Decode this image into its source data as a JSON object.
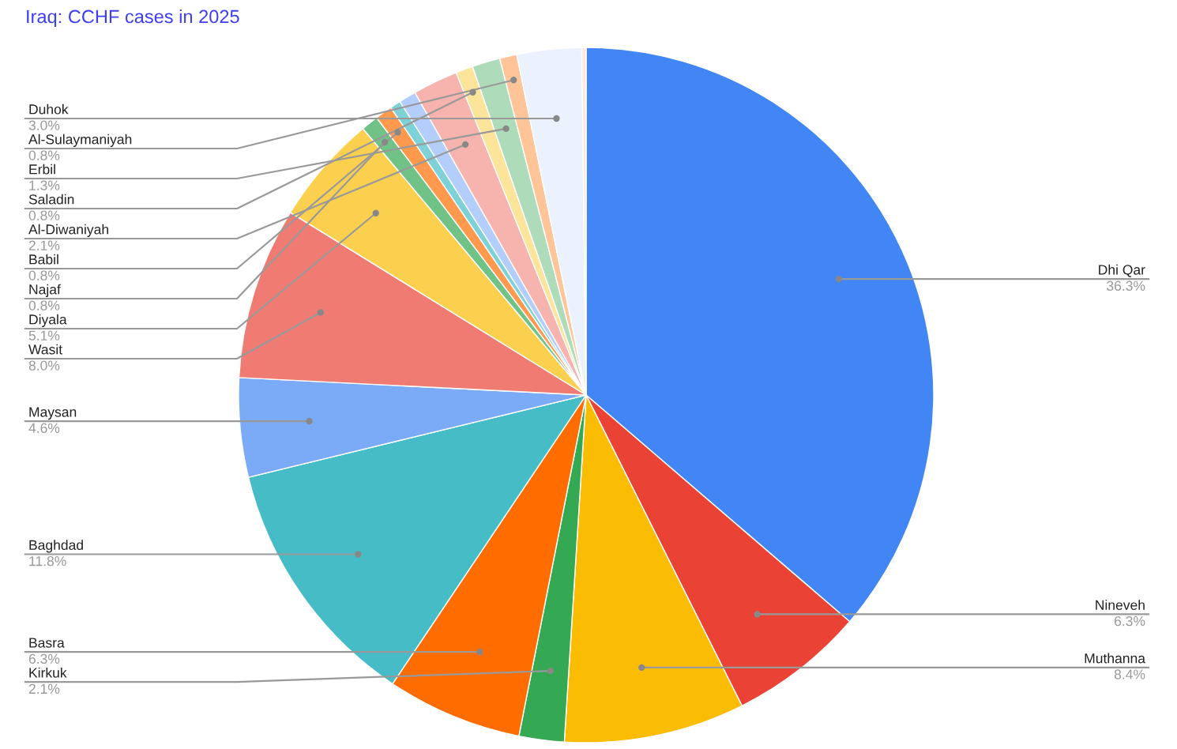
{
  "chart_data": {
    "type": "pie",
    "title": "Iraq: CCHF cases in 2025",
    "categories": [
      "Dhi Qar",
      "Nineveh",
      "Muthanna",
      "Kirkuk",
      "Basra",
      "Baghdad",
      "Maysan",
      "Wasit",
      "Diyala",
      "Najaf",
      "Babil",
      null,
      null,
      "Al-Diwaniyah",
      "Saladin",
      "Erbil",
      "Al-Sulaymaniyah",
      "Duhok",
      null
    ],
    "values": [
      36.3,
      6.3,
      8.4,
      2.1,
      6.3,
      11.8,
      4.6,
      8.0,
      5.1,
      0.8,
      0.8,
      0.5,
      0.8,
      2.1,
      0.8,
      1.3,
      0.8,
      3.0,
      0.2
    ],
    "value_labels": [
      "36.3%",
      "6.3%",
      "8.4%",
      "2.1%",
      "6.3%",
      "11.8%",
      "4.6%",
      "8.0%",
      "5.1%",
      "0.8%",
      "0.8%",
      null,
      null,
      "2.1%",
      "0.8%",
      "1.3%",
      "0.8%",
      "3.0%",
      null
    ],
    "colors": [
      "#4285f4",
      "#ea4335",
      "#fbbc04",
      "#34a853",
      "#ff6d01",
      "#46bdc6",
      "#7baaf7",
      "#f07b72",
      "#fcd04f",
      "#71c287",
      "#ff994d",
      "#7ed1d7",
      "#b3cefb",
      "#f7b4ae",
      "#fde49b",
      "#aedcba",
      "#ffc599",
      "#ecf1fe",
      "#fce8e6"
    ],
    "legend": false
  }
}
